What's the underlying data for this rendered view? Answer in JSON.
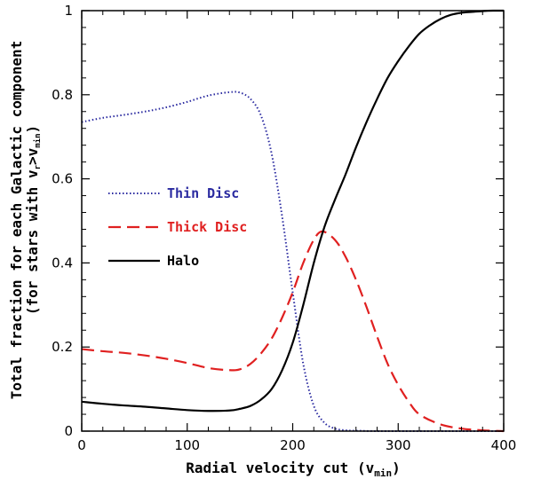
{
  "chart_data": {
    "type": "line",
    "xlabel": "Radial velocity cut (v",
    "xlabel_sub": "min",
    "xlabel_close": ")",
    "ylabel_line1": "Total fraction for each Galactic component",
    "ylabel_line2_pre": "(for stars with v",
    "ylabel_line2_sub1": "r",
    "ylabel_line2_mid": ">v",
    "ylabel_line2_sub2": "min",
    "ylabel_line2_post": ")",
    "xlim": [
      0,
      400
    ],
    "ylim": [
      0,
      1
    ],
    "x_ticks": [
      0,
      100,
      200,
      300,
      400
    ],
    "x_tick_labels": [
      "0",
      "100",
      "200",
      "300",
      "400"
    ],
    "y_ticks": [
      0,
      0.2,
      0.4,
      0.6,
      0.8,
      1
    ],
    "y_tick_labels": [
      "0",
      "0.2",
      "0.4",
      "0.6",
      "0.8",
      "1"
    ],
    "legend_placement": "center-left",
    "series": [
      {
        "name": "Thin Disc",
        "color": "#2a2aa0",
        "style": "dotted",
        "x": [
          0,
          20,
          40,
          60,
          80,
          100,
          120,
          140,
          150,
          160,
          170,
          180,
          190,
          200,
          210,
          220,
          230,
          240,
          250,
          260,
          280,
          300,
          350,
          400
        ],
        "y": [
          0.735,
          0.745,
          0.752,
          0.76,
          0.77,
          0.783,
          0.798,
          0.806,
          0.805,
          0.79,
          0.75,
          0.66,
          0.51,
          0.33,
          0.16,
          0.06,
          0.02,
          0.006,
          0.002,
          0.001,
          0,
          0,
          0,
          0
        ]
      },
      {
        "name": "Thick Disc",
        "color": "#e02020",
        "style": "dashed",
        "x": [
          0,
          20,
          40,
          60,
          80,
          100,
          120,
          140,
          150,
          160,
          170,
          180,
          190,
          200,
          210,
          220,
          228,
          240,
          250,
          260,
          270,
          280,
          290,
          300,
          310,
          320,
          340,
          360,
          380,
          400
        ],
        "y": [
          0.195,
          0.19,
          0.186,
          0.18,
          0.172,
          0.162,
          0.15,
          0.145,
          0.147,
          0.16,
          0.185,
          0.22,
          0.27,
          0.33,
          0.4,
          0.455,
          0.475,
          0.455,
          0.415,
          0.36,
          0.295,
          0.225,
          0.16,
          0.11,
          0.07,
          0.04,
          0.016,
          0.006,
          0.002,
          0
        ]
      },
      {
        "name": "Halo",
        "color": "#000000",
        "style": "solid",
        "x": [
          0,
          20,
          40,
          60,
          80,
          100,
          120,
          140,
          150,
          160,
          170,
          180,
          190,
          200,
          210,
          220,
          230,
          240,
          250,
          260,
          270,
          280,
          290,
          300,
          310,
          320,
          330,
          340,
          350,
          360,
          370,
          380,
          390,
          400
        ],
        "y": [
          0.07,
          0.065,
          0.061,
          0.058,
          0.054,
          0.05,
          0.048,
          0.049,
          0.053,
          0.06,
          0.075,
          0.1,
          0.145,
          0.21,
          0.3,
          0.4,
          0.485,
          0.55,
          0.61,
          0.675,
          0.735,
          0.79,
          0.84,
          0.88,
          0.915,
          0.945,
          0.965,
          0.98,
          0.99,
          0.995,
          0.997,
          0.999,
          1,
          1
        ]
      }
    ]
  }
}
